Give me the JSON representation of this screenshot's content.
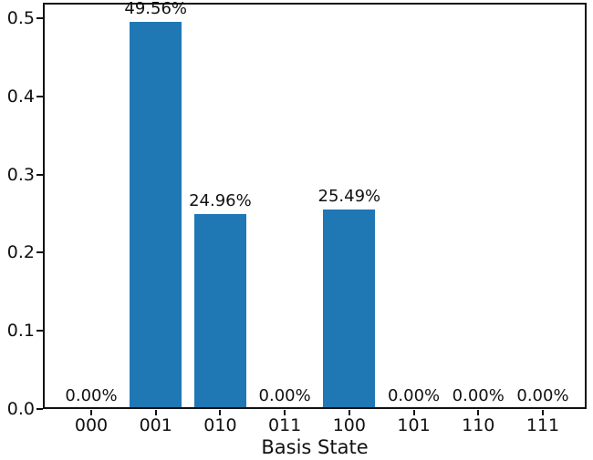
{
  "chart_data": {
    "type": "bar",
    "title": "",
    "xlabel": "Basis State",
    "ylabel": "",
    "categories": [
      "000",
      "001",
      "010",
      "011",
      "100",
      "101",
      "110",
      "111"
    ],
    "values": [
      0.0,
      0.4956,
      0.2496,
      0.0,
      0.2549,
      0.0,
      0.0,
      0.0
    ],
    "bar_labels": [
      "0.00%",
      "49.56%",
      "24.96%",
      "0.00%",
      "25.49%",
      "0.00%",
      "0.00%",
      "0.00%"
    ],
    "yticks": [
      "0.0",
      "0.1",
      "0.2",
      "0.3",
      "0.4",
      "0.5"
    ],
    "ytick_values": [
      0.0,
      0.1,
      0.2,
      0.3,
      0.4,
      0.5
    ],
    "ylim": [
      0.0,
      0.52
    ],
    "bar_color": "#1f77b4",
    "axis_color": "#111111",
    "grid": false,
    "legend": false
  }
}
